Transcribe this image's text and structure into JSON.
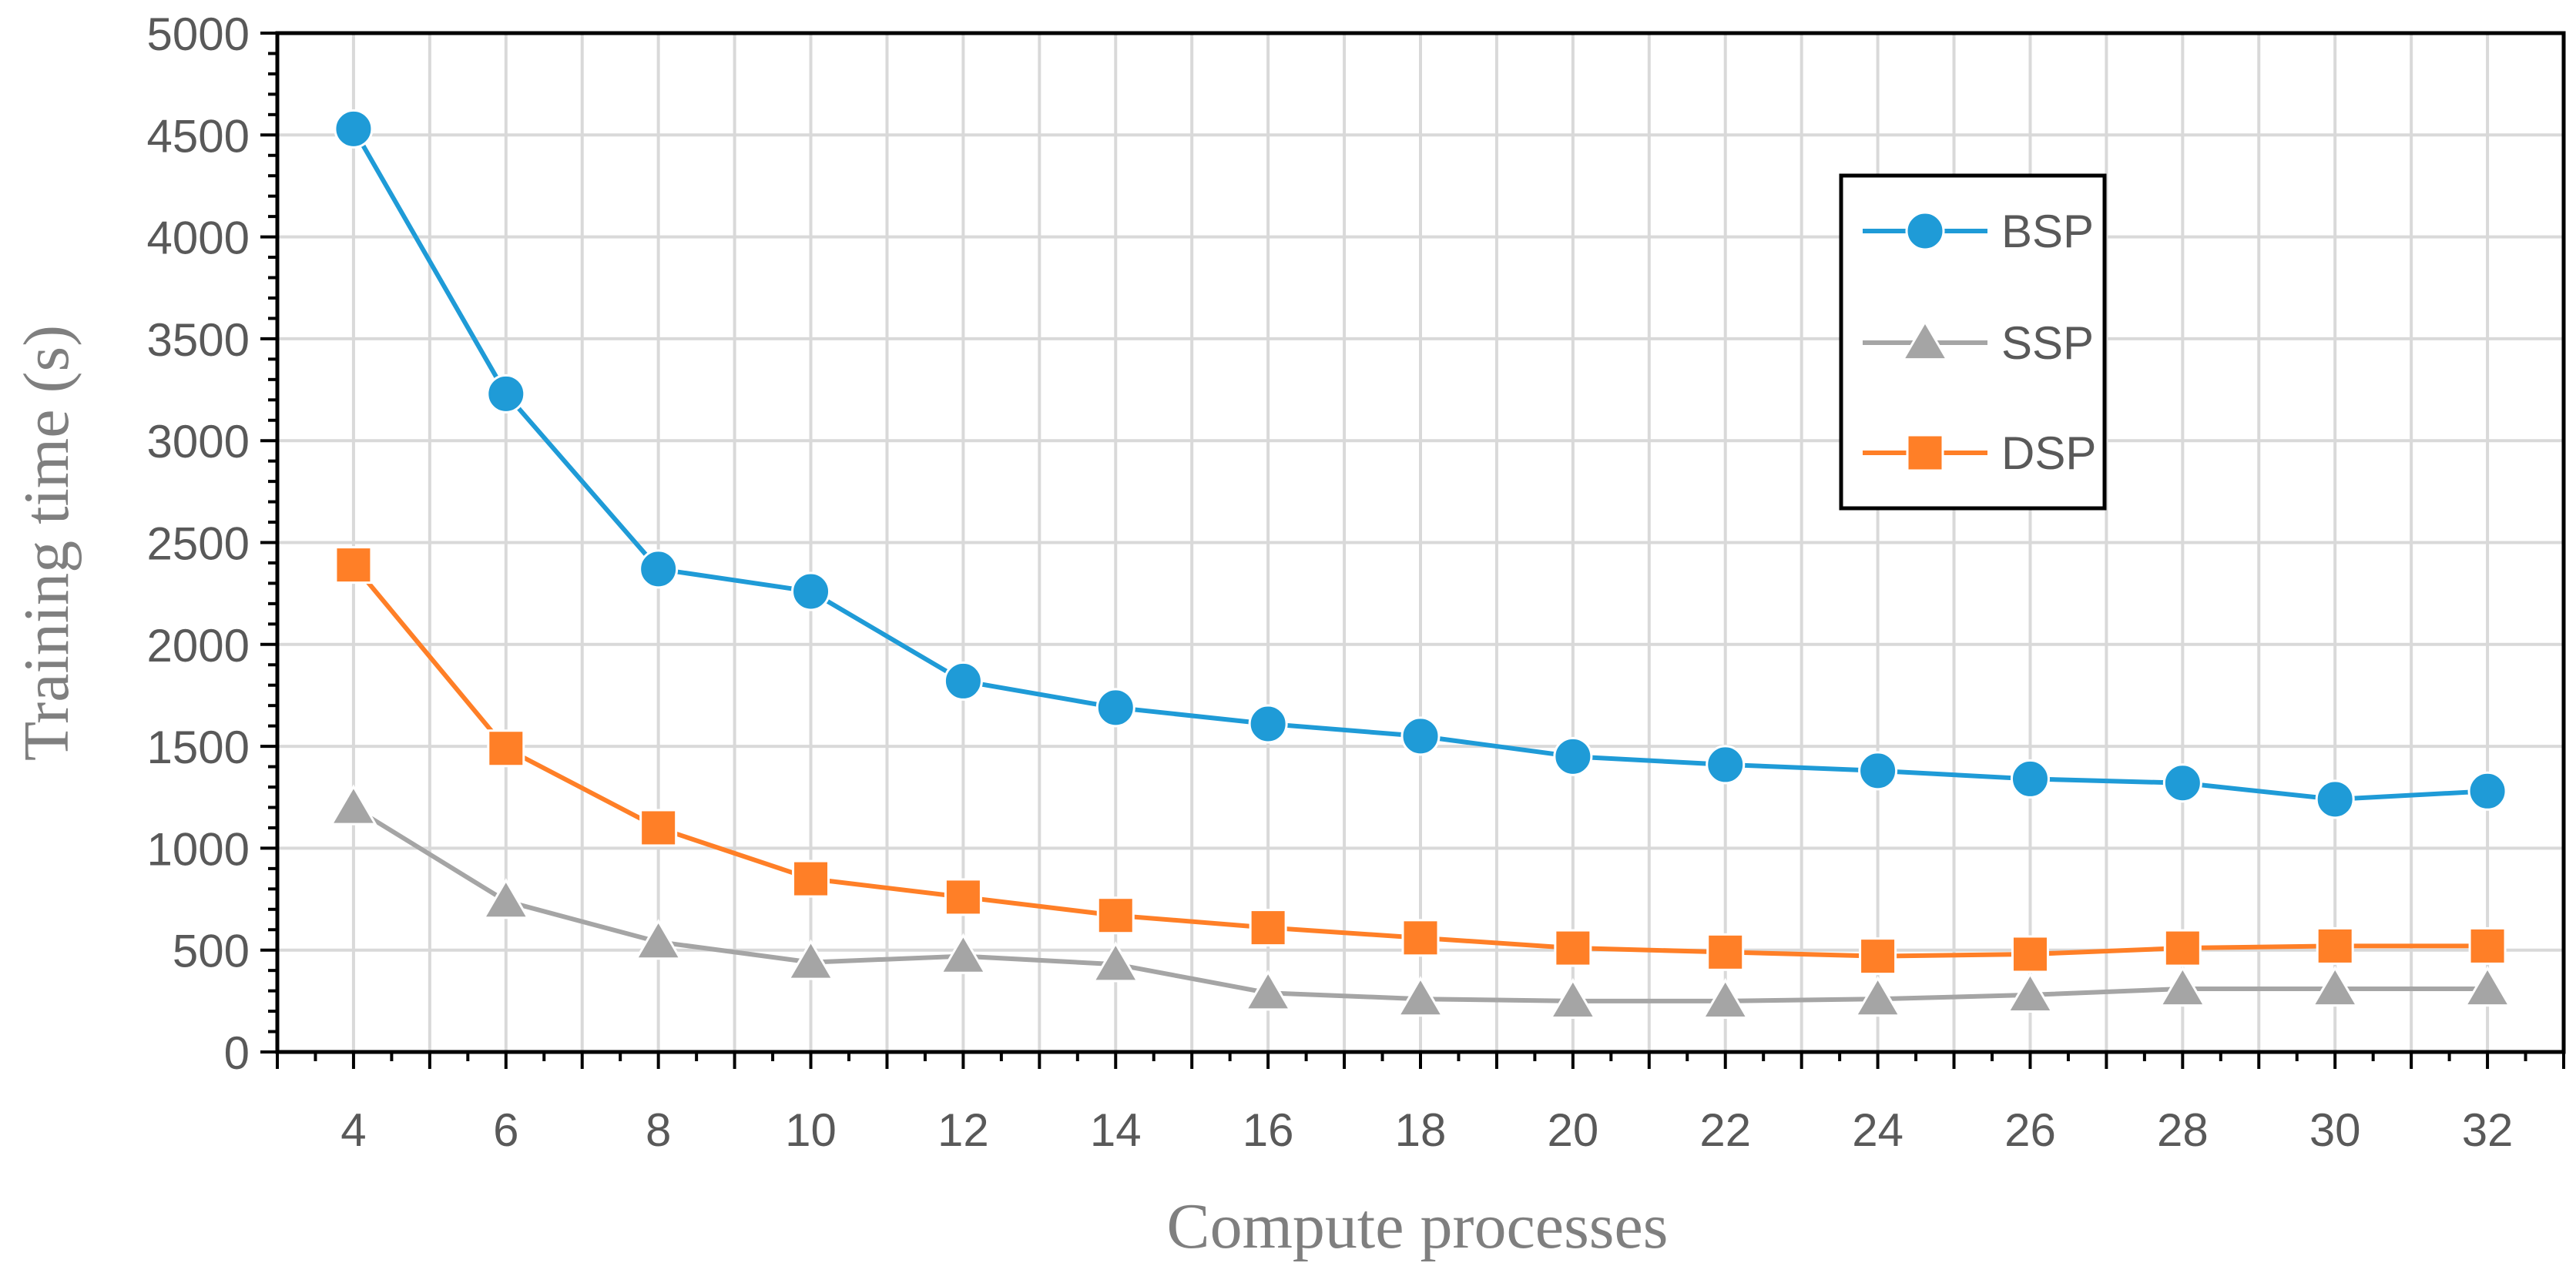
{
  "chart_data": {
    "type": "line",
    "title": "",
    "xlabel": "Compute processes",
    "ylabel": "Training time (s)",
    "x": [
      4,
      6,
      8,
      10,
      12,
      14,
      16,
      18,
      20,
      22,
      24,
      26,
      28,
      30,
      32
    ],
    "xlim": [
      3,
      33
    ],
    "ylim": [
      0,
      5000
    ],
    "xticks": [
      "4",
      "6",
      "8",
      "10",
      "12",
      "14",
      "16",
      "18",
      "20",
      "22",
      "24",
      "26",
      "28",
      "30",
      "32"
    ],
    "yticks": [
      "0",
      "500",
      "1000",
      "1500",
      "2000",
      "2500",
      "3000",
      "3500",
      "4000",
      "4500",
      "5000"
    ],
    "grid": true,
    "legend_position": "top-right",
    "series": [
      {
        "name": "BSP",
        "marker": "circle",
        "color": "#1f9bd7",
        "values": [
          4530,
          3230,
          2370,
          2260,
          1820,
          1690,
          1610,
          1550,
          1450,
          1410,
          1380,
          1340,
          1320,
          1240,
          1280
        ]
      },
      {
        "name": "SSP",
        "marker": "triangle",
        "color": "#a5a5a5",
        "values": [
          1200,
          740,
          540,
          440,
          470,
          430,
          290,
          260,
          250,
          250,
          260,
          280,
          310,
          310,
          310
        ]
      },
      {
        "name": "DSP",
        "marker": "square",
        "color": "#ff7f27",
        "values": [
          2390,
          1490,
          1100,
          850,
          760,
          670,
          610,
          560,
          510,
          490,
          470,
          480,
          510,
          520,
          520
        ]
      }
    ]
  }
}
